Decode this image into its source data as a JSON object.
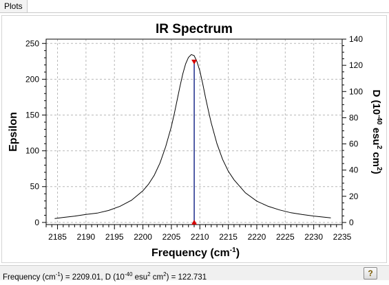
{
  "tab": {
    "label": "Plots"
  },
  "chart_data": {
    "type": "line",
    "title": "IR Spectrum",
    "xlabel": "Frequency (cm",
    "xlabel_sup": "-1",
    "xlabel_tail": ")",
    "ylabel": "Epsilon",
    "y2label": "D (10",
    "y2label_sup1": "-40",
    "y2label_mid": " esu",
    "y2label_sup2": "2",
    "y2label_mid2": " cm",
    "y2label_sup3": "2",
    "y2label_tail": ")",
    "xlim": [
      2183,
      2235
    ],
    "ylim": [
      -3,
      256
    ],
    "y2lim": [
      -1.6,
      140
    ],
    "xticks": [
      2185,
      2190,
      2195,
      2200,
      2205,
      2210,
      2215,
      2220,
      2225,
      2230,
      2235
    ],
    "yticks": [
      0,
      50,
      100,
      150,
      200,
      250
    ],
    "y2ticks": [
      0,
      20,
      40,
      60,
      80,
      100,
      120,
      140
    ],
    "grid": true,
    "series": [
      {
        "x": [
          2184.5,
          2186,
          2188,
          2190,
          2192,
          2194,
          2196,
          2198,
          2200,
          2201,
          2202,
          2203,
          2204,
          2205,
          2205.5,
          2206,
          2206.5,
          2207,
          2207.5,
          2208,
          2208.5,
          2209,
          2209.5,
          2210,
          2210.5,
          2211,
          2211.5,
          2212,
          2213,
          2214,
          2215,
          2216,
          2218,
          2220,
          2222,
          2224,
          2226,
          2228,
          2230,
          2232,
          2233
        ],
        "values": [
          5.3,
          7.0,
          8.7,
          11.1,
          13.0,
          16.8,
          22.6,
          31.0,
          44.2,
          53.5,
          66.0,
          83.0,
          106.0,
          134.0,
          151.5,
          170.5,
          189.5,
          207.5,
          221.5,
          230.5,
          234.5,
          233.0,
          224.5,
          211.5,
          194.0,
          174.5,
          156.0,
          139.0,
          110.0,
          88.0,
          71.5,
          59.5,
          41.3,
          29.7,
          22.5,
          17.4,
          13.5,
          11.0,
          8.9,
          7.2,
          6.3
        ]
      }
    ],
    "stick": {
      "x": 2209.01,
      "d": 122.731
    }
  },
  "colors": {
    "curve": "#000000",
    "stick": "#1a2a8a",
    "marker": "#d40000",
    "grid": "#b8b8b8"
  },
  "status": {
    "freq_label": "Frequency (cm",
    "freq_sup": "-1",
    "freq_mid": ") = 2209.01, D (10",
    "d_sup1": "-40",
    "d_mid": " esu",
    "d_sup2": "2",
    "d_mid2": " cm",
    "d_sup3": "2",
    "d_tail": ") = 122.731"
  },
  "help": {
    "icon": "help-icon",
    "label": "?"
  }
}
